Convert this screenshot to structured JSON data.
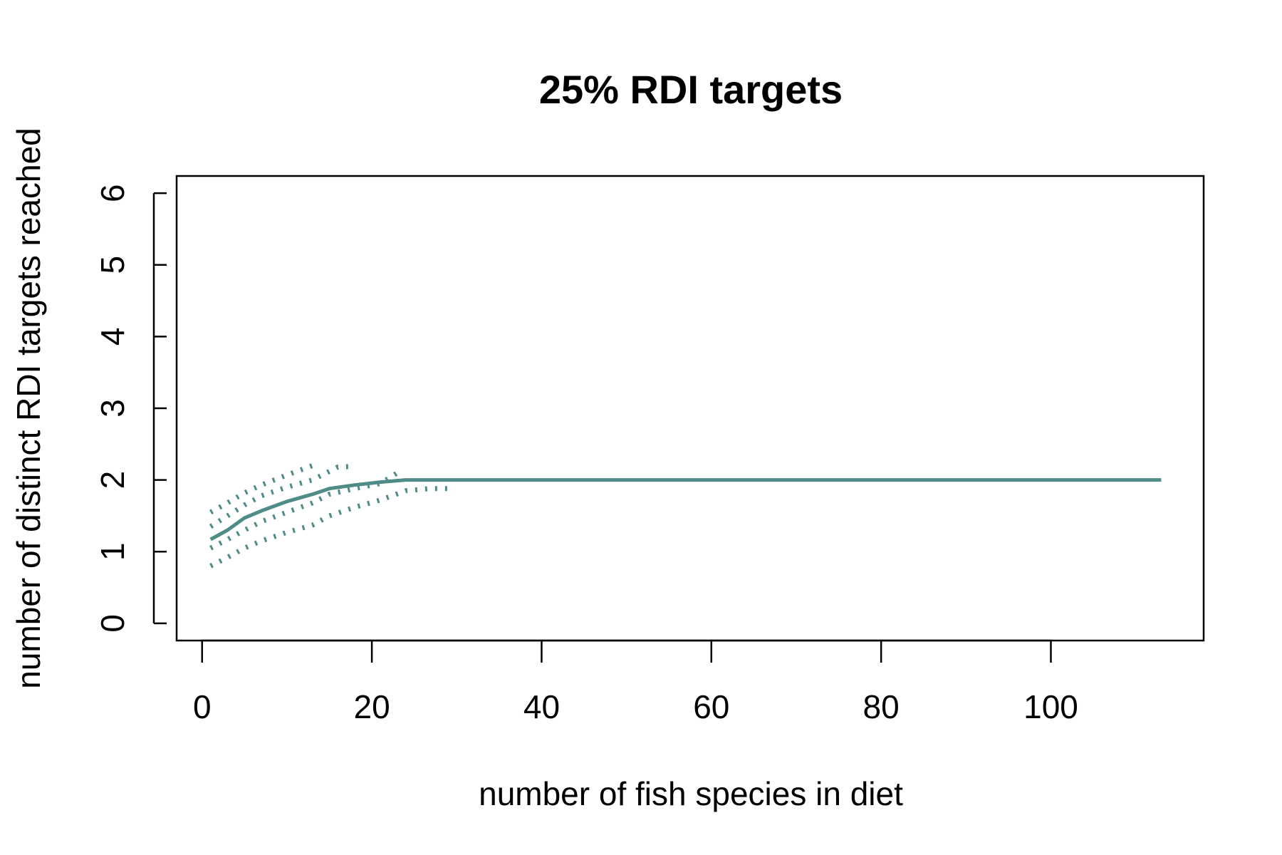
{
  "chart_data": {
    "type": "line",
    "title": "25% RDI targets",
    "xlabel": "number of fish species in diet",
    "ylabel": "number of distinct RDI targets reached",
    "xlim": [
      -3,
      118
    ],
    "ylim": [
      -0.24,
      6.24
    ],
    "x_ticks": [
      0,
      20,
      40,
      60,
      80,
      100
    ],
    "y_ticks": [
      0,
      1,
      2,
      3,
      4,
      5,
      6
    ],
    "x_tick_labels": [
      "0",
      "20",
      "40",
      "60",
      "80",
      "100"
    ],
    "y_tick_labels": [
      "0",
      "1",
      "2",
      "3",
      "4",
      "5",
      "6"
    ],
    "grid": false,
    "legend": "none",
    "line_color": "#4f8b87",
    "series": [
      {
        "style": "solid",
        "points": [
          [
            1,
            1.17
          ],
          [
            3,
            1.3
          ],
          [
            5,
            1.47
          ],
          [
            7,
            1.57
          ],
          [
            10,
            1.7
          ],
          [
            13,
            1.8
          ],
          [
            15,
            1.88
          ],
          [
            18,
            1.93
          ],
          [
            21,
            1.97
          ],
          [
            24,
            2.0
          ],
          [
            30,
            2.0
          ],
          [
            113,
            2.0
          ]
        ]
      },
      {
        "style": "dotted",
        "points": [
          [
            1,
            1.55
          ],
          [
            3,
            1.68
          ],
          [
            5,
            1.82
          ],
          [
            7,
            1.93
          ],
          [
            10,
            2.07
          ],
          [
            13,
            2.2
          ]
        ]
      },
      {
        "style": "dotted",
        "points": [
          [
            1,
            1.35
          ],
          [
            3,
            1.5
          ],
          [
            5,
            1.65
          ],
          [
            7,
            1.78
          ],
          [
            10,
            1.9
          ],
          [
            13,
            2.0
          ],
          [
            16,
            2.18
          ],
          [
            18,
            2.19
          ]
        ]
      },
      {
        "style": "dotted",
        "points": [
          [
            1,
            1.05
          ],
          [
            3,
            1.17
          ],
          [
            5,
            1.3
          ],
          [
            7,
            1.42
          ],
          [
            10,
            1.55
          ],
          [
            13,
            1.68
          ],
          [
            15,
            1.8
          ],
          [
            18,
            1.88
          ],
          [
            21,
            1.95
          ],
          [
            23,
            2.1
          ]
        ]
      },
      {
        "style": "dotted",
        "points": [
          [
            1,
            0.8
          ],
          [
            3,
            0.92
          ],
          [
            5,
            1.05
          ],
          [
            7,
            1.15
          ],
          [
            10,
            1.27
          ],
          [
            13,
            1.37
          ],
          [
            15,
            1.5
          ],
          [
            18,
            1.62
          ],
          [
            21,
            1.72
          ],
          [
            24,
            1.85
          ],
          [
            27,
            1.88
          ],
          [
            29,
            1.88
          ]
        ]
      }
    ]
  }
}
